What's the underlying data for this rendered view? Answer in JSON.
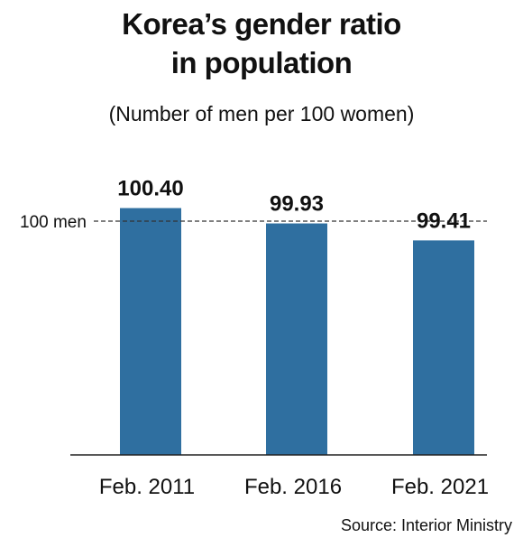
{
  "title_line1": "Korea’s gender ratio",
  "title_line2": "in population",
  "subtitle": "(Number of men per 100 women)",
  "source": "Source: Interior Ministry",
  "colors": {
    "bar": "#2f6fa0",
    "text": "#111111",
    "axis": "#222222",
    "reference": "#333333"
  },
  "chart_data": {
    "type": "bar",
    "categories": [
      "Feb. 2011",
      "Feb. 2016",
      "Feb. 2021"
    ],
    "values": [
      100.4,
      99.93,
      99.41
    ],
    "value_labels": [
      "100.40",
      "99.93",
      "99.41"
    ],
    "reference_line": {
      "value": 100,
      "label": "100 men"
    },
    "title": "Korea’s gender ratio in population",
    "subtitle": "(Number of men per 100 women)",
    "xlabel": "",
    "ylabel": "",
    "grid": false,
    "legend": "none"
  }
}
